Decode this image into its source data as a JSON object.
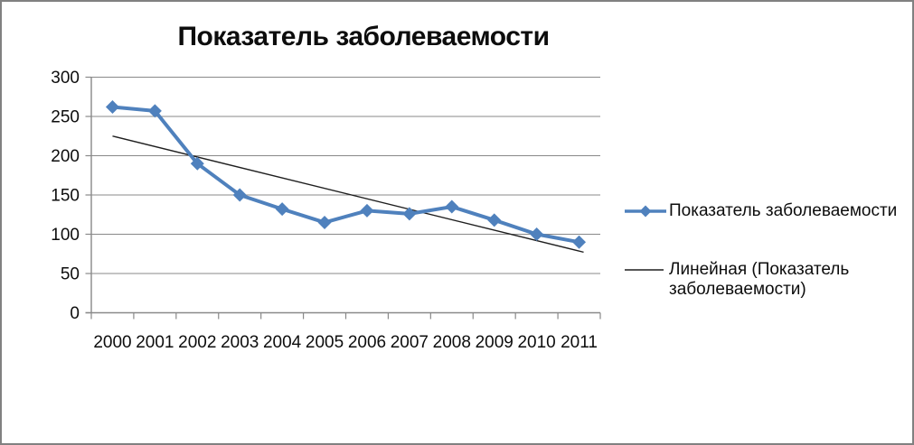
{
  "chart_data": {
    "type": "line",
    "title": "Показатель заболеваемости",
    "categories": [
      "2000",
      "2001",
      "2002",
      "2003",
      "2004",
      "2005",
      "2006",
      "2007",
      "2008",
      "2009",
      "2010",
      "2011"
    ],
    "series": [
      {
        "name": "Показатель заболеваемости",
        "values": [
          262,
          257,
          190,
          150,
          132,
          115,
          130,
          126,
          135,
          118,
          100,
          90
        ],
        "color": "#4f81bd",
        "marker": "diamond"
      }
    ],
    "trendline": {
      "name": "Линейная (Показатель заболеваемости)",
      "start_value": 225,
      "end_value": 76,
      "color": "#1f1f1f"
    },
    "xlabel": "",
    "ylabel": "",
    "ylim": [
      0,
      300
    ],
    "y_ticks": [
      0,
      50,
      100,
      150,
      200,
      250,
      300
    ],
    "grid": true,
    "legend_position": "right"
  },
  "legend": {
    "items": [
      {
        "label": "Показатель заболеваемости",
        "swatch": "line-diamond",
        "color": "#4f81bd"
      },
      {
        "label": "Линейная (Показатель заболеваемости)",
        "swatch": "line",
        "color": "#1f1f1f"
      }
    ]
  },
  "colors": {
    "series_blue": "#4f81bd",
    "trend_black": "#1f1f1f",
    "grid_gray": "#898989",
    "text": "#0d0d0d",
    "frame_border": "#818181",
    "background": "#ffffff"
  }
}
